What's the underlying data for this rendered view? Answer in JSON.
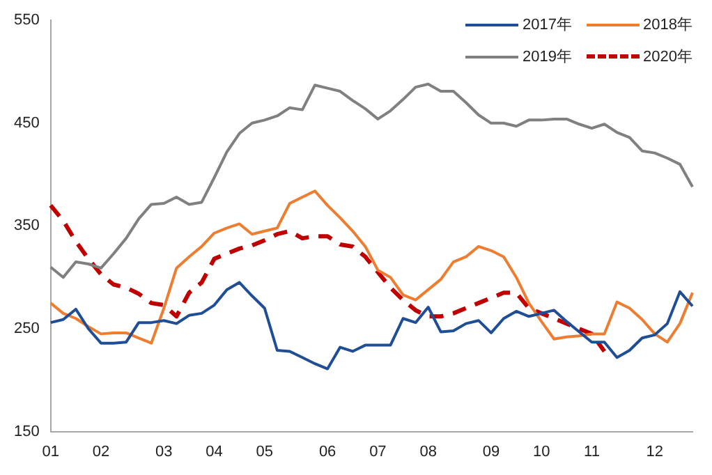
{
  "chart_data": {
    "type": "line",
    "categories": [
      "01",
      null,
      null,
      null,
      "02",
      null,
      null,
      null,
      null,
      "03",
      null,
      null,
      null,
      "04",
      null,
      null,
      null,
      "05",
      null,
      null,
      null,
      null,
      "06",
      null,
      null,
      null,
      "07",
      null,
      null,
      null,
      "08",
      null,
      null,
      null,
      null,
      "09",
      null,
      null,
      null,
      "10",
      null,
      null,
      null,
      "11",
      null,
      null,
      null,
      null,
      "12",
      null,
      null,
      null
    ],
    "series": [
      {
        "name": "2017年",
        "color": "#1f4e96",
        "values": [
          256,
          259,
          269,
          250,
          236,
          236,
          237,
          256,
          256,
          258,
          255,
          263,
          265,
          273,
          288,
          295,
          282,
          270,
          229,
          228,
          222,
          216,
          211,
          232,
          228,
          234,
          234,
          234,
          260,
          256,
          271,
          247,
          248,
          255,
          258,
          246,
          260,
          267,
          262,
          265,
          268,
          257,
          247,
          237,
          237,
          222,
          229,
          241,
          244,
          255,
          286,
          272
        ]
      },
      {
        "name": "2018年",
        "color": "#ed7d31",
        "values": [
          275,
          265,
          260,
          252,
          245,
          246,
          246,
          241,
          236,
          270,
          309,
          320,
          330,
          343,
          348,
          352,
          342,
          345,
          348,
          372,
          378,
          384,
          370,
          358,
          345,
          330,
          307,
          300,
          283,
          278,
          288,
          298,
          315,
          320,
          330,
          326,
          320,
          300,
          275,
          257,
          240,
          242,
          243,
          245,
          245,
          276,
          270,
          259,
          245,
          237,
          255,
          285
        ]
      },
      {
        "name": "2019年",
        "color": "#808080",
        "values": [
          310,
          300,
          315,
          313,
          309,
          323,
          338,
          357,
          371,
          372,
          378,
          371,
          373,
          397,
          422,
          440,
          450,
          453,
          457,
          465,
          463,
          487,
          484,
          481,
          472,
          464,
          454,
          462,
          473,
          485,
          488,
          481,
          481,
          470,
          458,
          450,
          450,
          447,
          453,
          453,
          454,
          454,
          449,
          445,
          449,
          441,
          436,
          423,
          421,
          416,
          410,
          388
        ]
      },
      {
        "name": "2020年",
        "color": "#c00000",
        "line_style": "dashed",
        "values": [
          370,
          355,
          335,
          318,
          303,
          293,
          290,
          284,
          275,
          273,
          262,
          285,
          295,
          318,
          323,
          328,
          331,
          336,
          342,
          345,
          338,
          340,
          340,
          332,
          330,
          320,
          305,
          290,
          278,
          268,
          262,
          262,
          265,
          270,
          275,
          280,
          285,
          285,
          270,
          265,
          260,
          255,
          250,
          245,
          228,
          null,
          null,
          null,
          null,
          null,
          null,
          null
        ]
      }
    ],
    "ylim": [
      150,
      550
    ],
    "yticks": [
      150,
      250,
      350,
      450,
      550
    ],
    "grid": false,
    "legend": "top right",
    "marker": "none",
    "line_style": "solid"
  }
}
